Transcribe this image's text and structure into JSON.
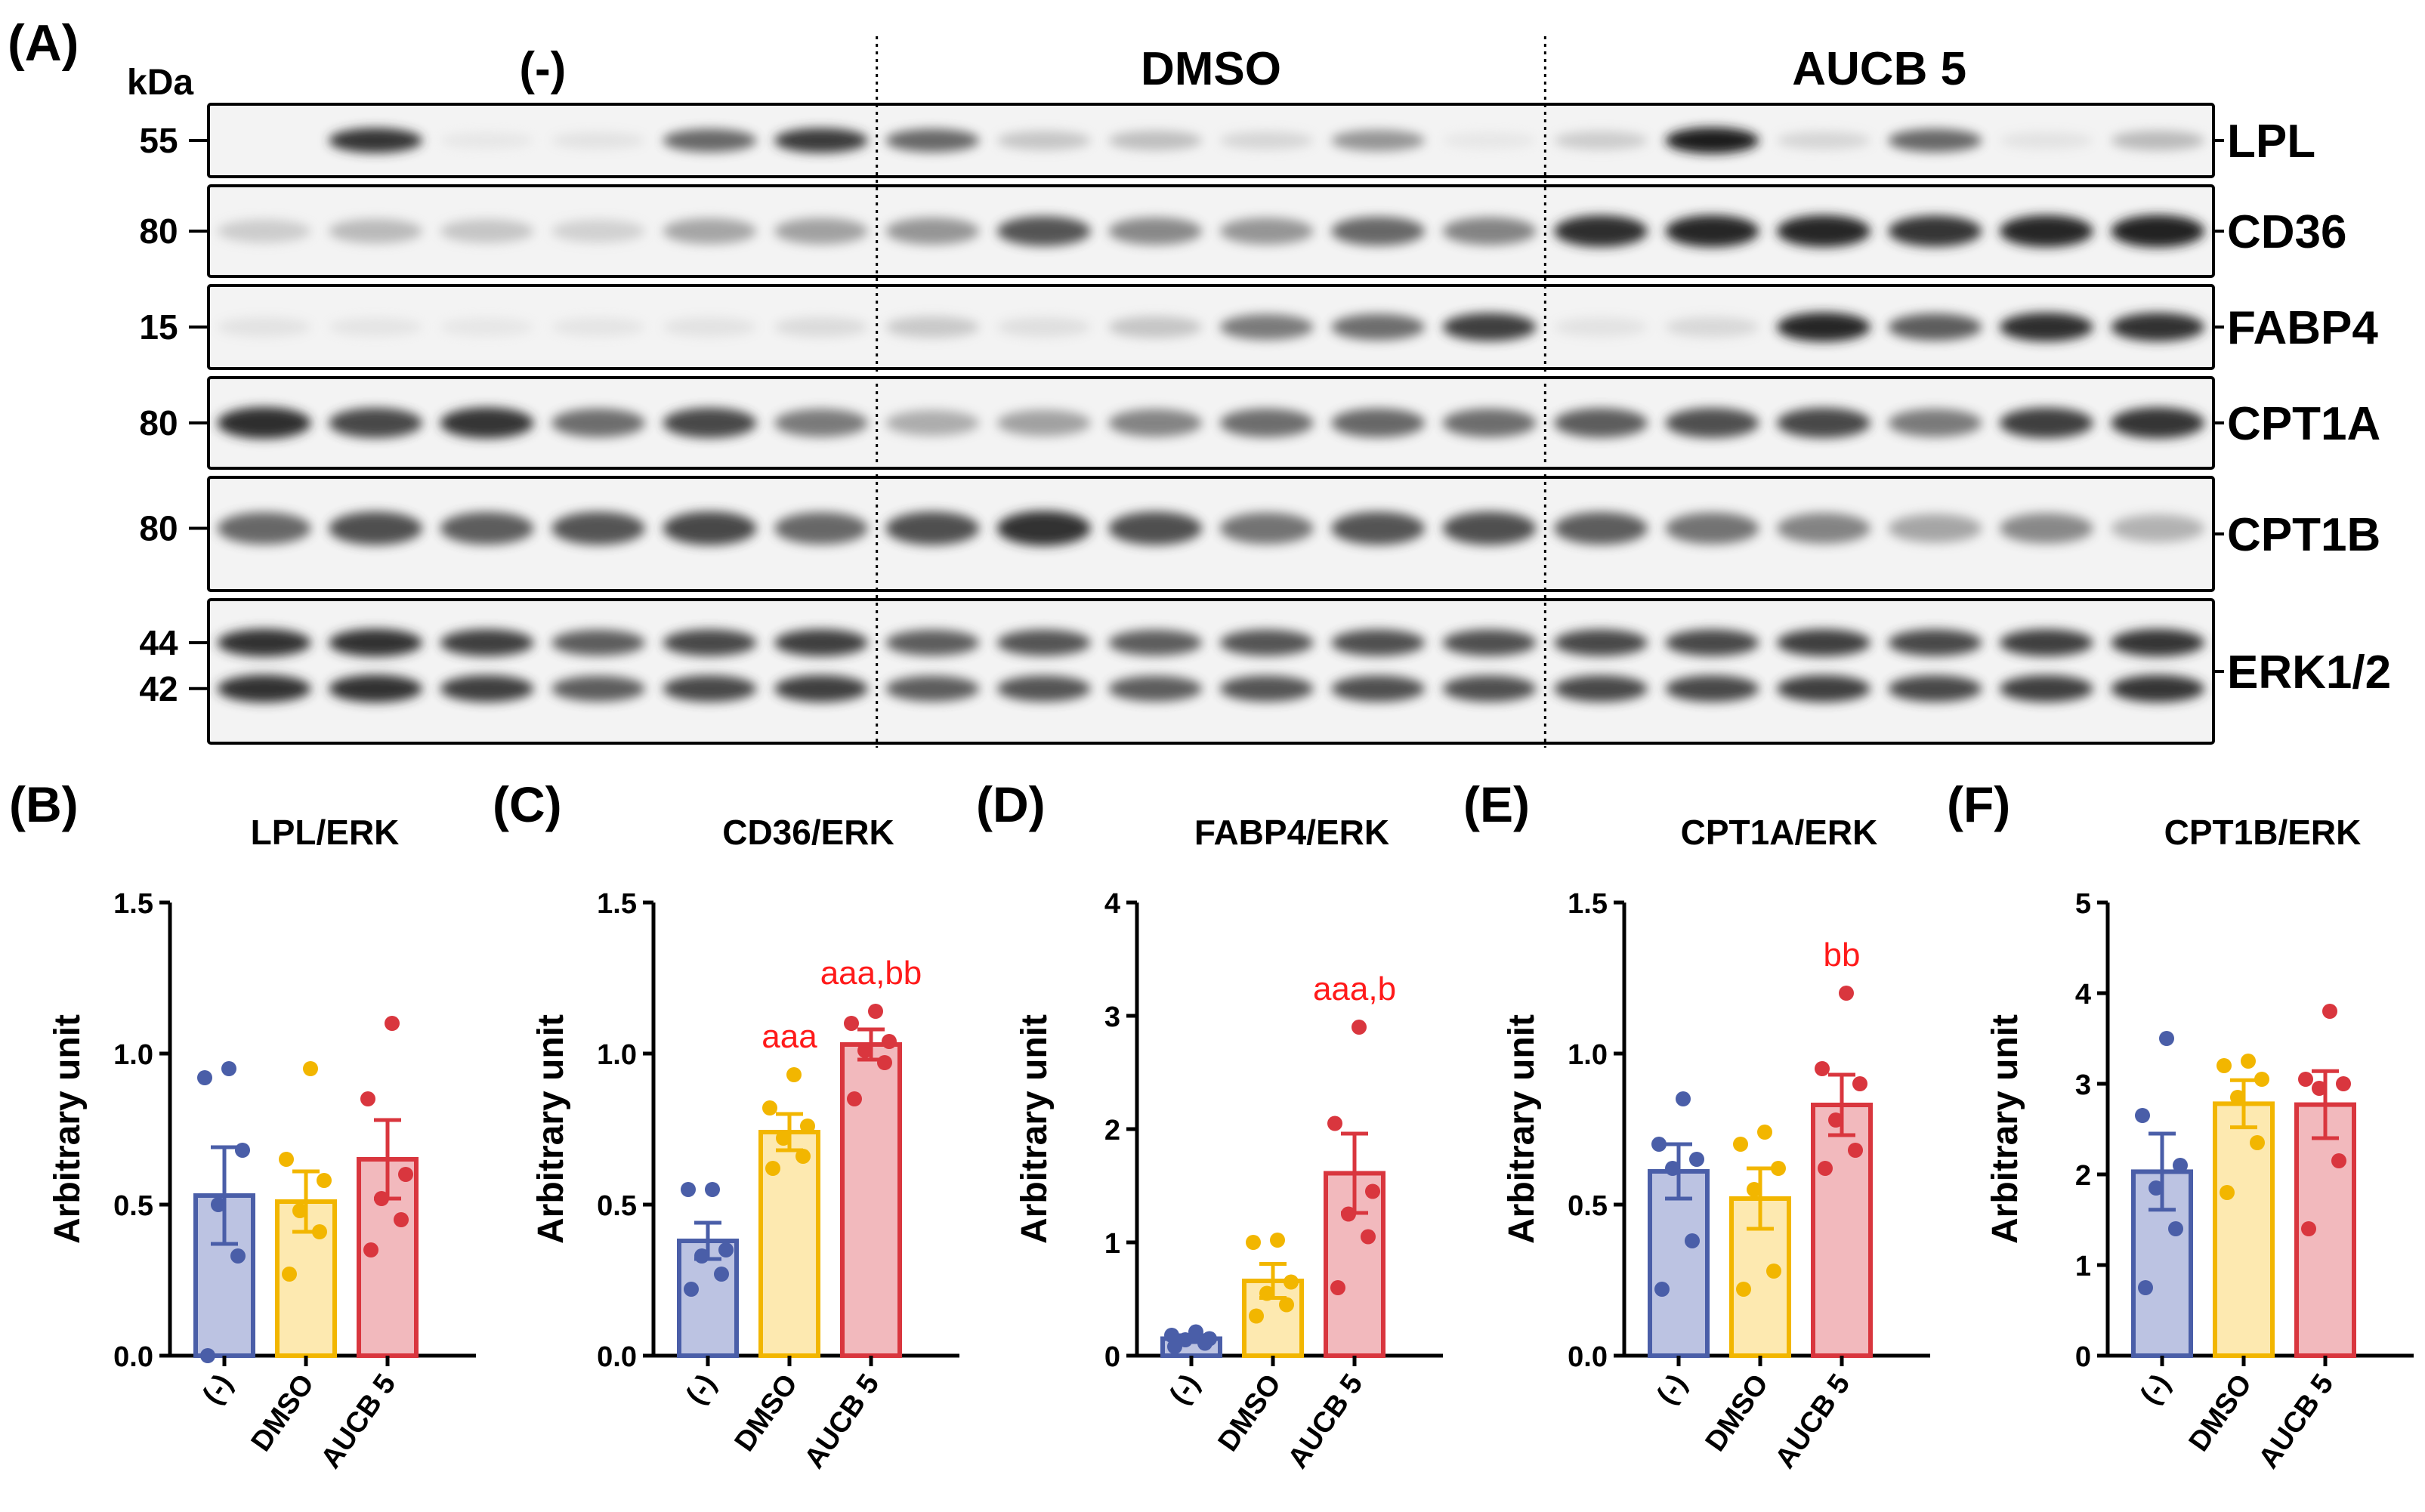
{
  "panel_a": {
    "letter": "(A)",
    "kda_label": "kDa",
    "groups": [
      "(-)",
      "DMSO",
      "AUCB 5"
    ],
    "lanes_per_group": 6,
    "blots": [
      {
        "protein": "LPL",
        "markers": [
          "55"
        ],
        "intensity": [
          0.0,
          0.88,
          0.08,
          0.12,
          0.72,
          0.86,
          0.72,
          0.32,
          0.36,
          0.22,
          0.55,
          0.08,
          0.28,
          1.0,
          0.22,
          0.72,
          0.12,
          0.38
        ]
      },
      {
        "protein": "CD36",
        "markers": [
          "80"
        ],
        "intensity": [
          0.28,
          0.38,
          0.32,
          0.25,
          0.48,
          0.5,
          0.55,
          0.78,
          0.6,
          0.55,
          0.72,
          0.62,
          0.92,
          0.95,
          0.95,
          0.88,
          0.95,
          0.98
        ]
      },
      {
        "protein": "FABP4",
        "markers": [
          "15"
        ],
        "intensity": [
          0.12,
          0.1,
          0.08,
          0.1,
          0.12,
          0.18,
          0.3,
          0.15,
          0.32,
          0.65,
          0.7,
          0.85,
          0.12,
          0.2,
          0.95,
          0.75,
          0.92,
          0.9
        ]
      },
      {
        "protein": "CPT1A",
        "markers": [
          "80"
        ],
        "intensity": [
          0.92,
          0.82,
          0.88,
          0.7,
          0.82,
          0.65,
          0.45,
          0.5,
          0.62,
          0.7,
          0.72,
          0.7,
          0.75,
          0.8,
          0.82,
          0.65,
          0.85,
          0.88
        ]
      },
      {
        "protein": "CPT1B",
        "markers": [
          "80"
        ],
        "intensity": [
          0.72,
          0.8,
          0.75,
          0.78,
          0.82,
          0.72,
          0.8,
          0.9,
          0.8,
          0.68,
          0.78,
          0.8,
          0.75,
          0.68,
          0.62,
          0.48,
          0.6,
          0.42
        ]
      },
      {
        "protein": "ERK1/2",
        "markers": [
          "44",
          "42"
        ],
        "intensity": [
          0.9,
          0.9,
          0.85,
          0.75,
          0.82,
          0.85,
          0.75,
          0.78,
          0.75,
          0.78,
          0.8,
          0.8,
          0.82,
          0.82,
          0.85,
          0.82,
          0.85,
          0.88
        ]
      }
    ]
  },
  "chart_data": [
    {
      "type": "bar",
      "letter": "(B)",
      "title": "LPL/ERK",
      "ylabel": "Arbitrary unit",
      "categories": [
        "(-)",
        "DMSO",
        "AUCB 5"
      ],
      "ylim": [
        0,
        1.5
      ],
      "yticks": [
        "0.0",
        "0.5",
        "1.0",
        "1.5"
      ],
      "values": [
        0.53,
        0.51,
        0.65
      ],
      "sem": [
        0.16,
        0.1,
        0.13
      ],
      "points": [
        [
          0.0,
          0.33,
          0.5,
          0.68,
          0.92,
          0.95
        ],
        [
          0.27,
          0.41,
          0.48,
          0.58,
          0.65,
          0.95
        ],
        [
          0.35,
          0.45,
          0.52,
          0.6,
          0.85,
          1.1
        ]
      ],
      "annotations": [
        "",
        "",
        ""
      ]
    },
    {
      "type": "bar",
      "letter": "(C)",
      "title": "CD36/ERK",
      "ylabel": "Arbitrary unit",
      "categories": [
        "(-)",
        "DMSO",
        "AUCB 5"
      ],
      "ylim": [
        0,
        1.5
      ],
      "yticks": [
        "0.0",
        "0.5",
        "1.0",
        "1.5"
      ],
      "values": [
        0.38,
        0.74,
        1.03
      ],
      "sem": [
        0.06,
        0.06,
        0.05
      ],
      "points": [
        [
          0.22,
          0.27,
          0.33,
          0.35,
          0.55,
          0.55
        ],
        [
          0.62,
          0.66,
          0.72,
          0.76,
          0.82,
          0.93
        ],
        [
          0.85,
          0.97,
          1.01,
          1.04,
          1.1,
          1.14
        ]
      ],
      "annotations": [
        "",
        "aaa",
        "aaa,bb"
      ]
    },
    {
      "type": "bar",
      "letter": "(D)",
      "title": "FABP4/ERK",
      "ylabel": "Arbitrary unit",
      "categories": [
        "(-)",
        "DMSO",
        "AUCB 5"
      ],
      "ylim": [
        0,
        4
      ],
      "yticks": [
        "0",
        "1",
        "2",
        "3",
        "4"
      ],
      "values": [
        0.15,
        0.66,
        1.61
      ],
      "sem": [
        0.03,
        0.15,
        0.35
      ],
      "points": [
        [
          0.08,
          0.11,
          0.14,
          0.15,
          0.18,
          0.21
        ],
        [
          0.35,
          0.45,
          0.55,
          0.65,
          1.0,
          1.02
        ],
        [
          0.6,
          1.05,
          1.25,
          1.45,
          2.05,
          2.9
        ]
      ],
      "annotations": [
        "",
        "",
        "aaa,b"
      ]
    },
    {
      "type": "bar",
      "letter": "(E)",
      "title": "CPT1A/ERK",
      "ylabel": "Arbitrary unit",
      "categories": [
        "(-)",
        "DMSO",
        "AUCB 5"
      ],
      "ylim": [
        0,
        1.5
      ],
      "yticks": [
        "0.0",
        "0.5",
        "1.0",
        "1.5"
      ],
      "values": [
        0.61,
        0.52,
        0.83
      ],
      "sem": [
        0.09,
        0.1,
        0.1
      ],
      "points": [
        [
          0.22,
          0.38,
          0.62,
          0.65,
          0.7,
          0.85
        ],
        [
          0.22,
          0.28,
          0.55,
          0.62,
          0.7,
          0.74
        ],
        [
          0.62,
          0.68,
          0.78,
          0.9,
          0.95,
          1.2
        ]
      ],
      "annotations": [
        "",
        "",
        "bb"
      ]
    },
    {
      "type": "bar",
      "letter": "(F)",
      "title": "CPT1B/ERK",
      "ylabel": "Arbitrary unit",
      "categories": [
        "(-)",
        "DMSO",
        "AUCB 5"
      ],
      "ylim": [
        0,
        5
      ],
      "yticks": [
        "0",
        "1",
        "2",
        "3",
        "4",
        "5"
      ],
      "values": [
        2.03,
        2.78,
        2.77
      ],
      "sem": [
        0.42,
        0.26,
        0.37
      ],
      "points": [
        [
          0.75,
          1.4,
          1.85,
          2.1,
          2.65,
          3.5
        ],
        [
          1.8,
          2.35,
          2.85,
          3.05,
          3.2,
          3.25
        ],
        [
          1.4,
          2.15,
          2.95,
          3.0,
          3.05,
          3.8
        ]
      ],
      "annotations": [
        "",
        "",
        ""
      ]
    }
  ],
  "colors": {
    "series_stroke": [
      "#4a5ea8",
      "#f2b600",
      "#d9363e"
    ],
    "series_fill": [
      "#bcc3e2",
      "#fde9b0",
      "#f2b9bd"
    ],
    "annotation": "#ff1a1a",
    "blot_bg": "#f3f3f3"
  }
}
